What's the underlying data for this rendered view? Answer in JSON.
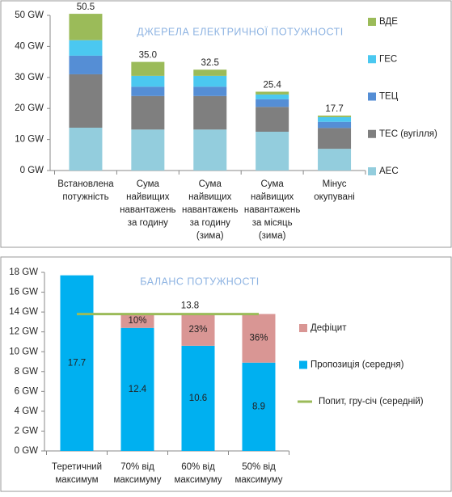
{
  "chart_data": [
    {
      "type": "bar",
      "stacked": true,
      "title": "ДЖЕРЕЛА ЕЛЕКТРИЧНОЇ  ПОТУЖНОСТІ",
      "categories": [
        [
          "Встановлена",
          "потужність"
        ],
        [
          "Сума",
          "найвищих",
          "навантажень",
          "за годину"
        ],
        [
          "Сума",
          "найвищих",
          "навантажень",
          "за годину",
          "(зима)"
        ],
        [
          "Сума",
          "найвищих",
          "навантажень",
          "за місяць",
          "(зима)"
        ],
        [
          "Мінус",
          "окупувані"
        ]
      ],
      "series": [
        {
          "name": "АЕС",
          "color": "#93cddd",
          "values": [
            13.8,
            13.2,
            13.2,
            12.5,
            7
          ]
        },
        {
          "name": "ТЕС (вугілля)",
          "color": "#7f7f7f",
          "values": [
            17.2,
            10.8,
            10.8,
            8,
            6.7
          ]
        },
        {
          "name": "ТЕЦ",
          "color": "#558ed5",
          "values": [
            6,
            3,
            3,
            2.5,
            2
          ]
        },
        {
          "name": "ГЕС",
          "color": "#4bc8f0",
          "values": [
            5,
            3.5,
            3.5,
            1.5,
            1.5
          ]
        },
        {
          "name": "ВДЕ",
          "color": "#9bbb59",
          "values": [
            8.5,
            4.5,
            2,
            0.9,
            0.5
          ]
        }
      ],
      "totals": {
        "values": [
          50.5,
          35,
          32.5,
          25.4,
          17.7
        ],
        "value_labels": [
          "50.5",
          "35.0",
          "32.5",
          "25.4",
          "17.7"
        ]
      },
      "ylim": [
        0,
        50
      ],
      "yticks": [
        {
          "value": 0,
          "label": "0 GW"
        },
        {
          "value": 10,
          "label": "10 GW"
        },
        {
          "value": 20,
          "label": "20 GW"
        },
        {
          "value": 30,
          "label": "30 GW"
        },
        {
          "value": 40,
          "label": "40 GW"
        },
        {
          "value": 50,
          "label": "50 GW"
        }
      ],
      "grid": false,
      "legend": "right"
    },
    {
      "type": "bar",
      "stacked": true,
      "title": "БАЛАНС  ПОТУЖНОСТІ",
      "categories": [
        [
          "Теретичний",
          "максимум"
        ],
        [
          "70% від",
          "максимуму"
        ],
        [
          "60% від",
          "максимуму"
        ],
        [
          "50% від",
          "максимуму"
        ]
      ],
      "series": [
        {
          "name": "Пропозиція (середня)",
          "color": "#00b0f0",
          "values": [
            17.7,
            12.4,
            10.6,
            8.9
          ],
          "value_labels": [
            "17.7",
            "12.4",
            "10.6",
            "8.9"
          ]
        },
        {
          "name": "Дефіцит",
          "color": "#d99694",
          "values": [
            null,
            1.4,
            3.2,
            4.9
          ]
        },
        {
          "name": "Попит, гру-січ (середній)",
          "color": "#9bbb59",
          "type": "line",
          "values": [
            13.8,
            13.8,
            13.8,
            13.8
          ],
          "value_labels": [
            null,
            null,
            "13.8",
            null
          ]
        }
      ],
      "shares": {
        "values": [
          null,
          10,
          23,
          36
        ],
        "value_labels": [
          null,
          "10%",
          "23%",
          "36%"
        ]
      },
      "ylim": [
        0,
        18
      ],
      "yticks": [
        {
          "value": 0,
          "label": "0 GW"
        },
        {
          "value": 2,
          "label": "2 GW"
        },
        {
          "value": 4,
          "label": "4 GW"
        },
        {
          "value": 6,
          "label": "6 GW"
        },
        {
          "value": 8,
          "label": "8 GW"
        },
        {
          "value": 10,
          "label": "10 GW"
        },
        {
          "value": 12,
          "label": "12 GW"
        },
        {
          "value": 14,
          "label": "14 GW"
        },
        {
          "value": 16,
          "label": "16 GW"
        },
        {
          "value": 18,
          "label": "18 GW"
        }
      ],
      "grid": false,
      "legend": "right"
    }
  ]
}
